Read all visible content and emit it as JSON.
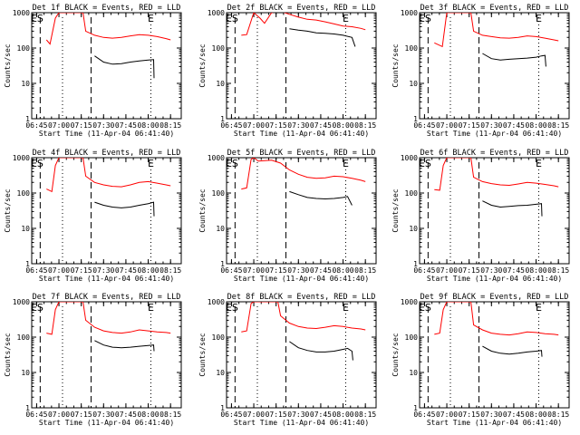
{
  "chart_data": [
    {
      "type": "line",
      "title": "Det 1f BLACK = Events, RED = LLD",
      "black": [
        [
          6.86,
          null
        ],
        [
          6.9,
          null
        ],
        [
          7.4,
          60
        ],
        [
          7.5,
          40
        ],
        [
          7.6,
          35
        ],
        [
          7.7,
          36
        ],
        [
          7.8,
          40
        ],
        [
          7.9,
          43
        ],
        [
          8.0,
          46
        ],
        [
          8.06,
          47
        ],
        [
          8.065,
          14
        ]
      ],
      "red": [
        [
          6.86,
          170
        ],
        [
          6.9,
          130
        ],
        [
          6.96,
          700
        ],
        [
          7.0,
          1000
        ],
        [
          7.27,
          1000
        ],
        [
          7.3,
          300
        ],
        [
          7.4,
          230
        ],
        [
          7.5,
          200
        ],
        [
          7.6,
          190
        ],
        [
          7.7,
          200
        ],
        [
          7.8,
          220
        ],
        [
          7.9,
          240
        ],
        [
          8.0,
          230
        ],
        [
          8.1,
          210
        ],
        [
          8.2,
          185
        ],
        [
          8.25,
          170
        ]
      ]
    },
    {
      "type": "line",
      "title": "Det 2f BLACK = Events, RED = LLD",
      "black": [
        [
          7.4,
          350
        ],
        [
          7.5,
          320
        ],
        [
          7.6,
          300
        ],
        [
          7.7,
          270
        ],
        [
          7.8,
          260
        ],
        [
          7.9,
          250
        ],
        [
          8.0,
          230
        ],
        [
          8.1,
          200
        ],
        [
          8.135,
          110
        ]
      ],
      "red": [
        [
          6.86,
          230
        ],
        [
          6.92,
          240
        ],
        [
          7.0,
          1000
        ],
        [
          7.07,
          700
        ],
        [
          7.12,
          500
        ],
        [
          7.2,
          1000
        ],
        [
          7.3,
          1100
        ],
        [
          7.4,
          900
        ],
        [
          7.5,
          750
        ],
        [
          7.6,
          650
        ],
        [
          7.7,
          620
        ],
        [
          7.8,
          550
        ],
        [
          7.9,
          480
        ],
        [
          8.0,
          420
        ],
        [
          8.1,
          400
        ],
        [
          8.2,
          360
        ],
        [
          8.25,
          330
        ]
      ]
    },
    {
      "type": "line",
      "title": "Det 3f BLACK = Events, RED = LLD",
      "black": [
        [
          7.4,
          70
        ],
        [
          7.5,
          50
        ],
        [
          7.6,
          46
        ],
        [
          7.7,
          48
        ],
        [
          7.8,
          50
        ],
        [
          7.9,
          52
        ],
        [
          8.0,
          55
        ],
        [
          8.06,
          60
        ],
        [
          8.1,
          62
        ],
        [
          8.11,
          30
        ]
      ],
      "red": [
        [
          6.86,
          140
        ],
        [
          6.95,
          110
        ],
        [
          7.0,
          1000
        ],
        [
          7.27,
          1000
        ],
        [
          7.3,
          300
        ],
        [
          7.4,
          230
        ],
        [
          7.5,
          210
        ],
        [
          7.6,
          195
        ],
        [
          7.7,
          190
        ],
        [
          7.8,
          200
        ],
        [
          7.9,
          220
        ],
        [
          8.0,
          210
        ],
        [
          8.1,
          190
        ],
        [
          8.2,
          170
        ],
        [
          8.25,
          160
        ]
      ]
    },
    {
      "type": "line",
      "title": "Det 4f BLACK = Events, RED = LLD",
      "black": [
        [
          7.4,
          55
        ],
        [
          7.5,
          45
        ],
        [
          7.6,
          40
        ],
        [
          7.7,
          38
        ],
        [
          7.8,
          40
        ],
        [
          7.9,
          45
        ],
        [
          8.0,
          50
        ],
        [
          8.06,
          55
        ],
        [
          8.065,
          22
        ]
      ],
      "red": [
        [
          6.86,
          130
        ],
        [
          6.92,
          110
        ],
        [
          6.96,
          600
        ],
        [
          7.0,
          1000
        ],
        [
          7.27,
          1000
        ],
        [
          7.3,
          300
        ],
        [
          7.4,
          200
        ],
        [
          7.5,
          170
        ],
        [
          7.6,
          155
        ],
        [
          7.7,
          150
        ],
        [
          7.8,
          170
        ],
        [
          7.9,
          200
        ],
        [
          8.0,
          210
        ],
        [
          8.1,
          190
        ],
        [
          8.2,
          170
        ],
        [
          8.25,
          160
        ]
      ]
    },
    {
      "type": "line",
      "title": "Det 5f BLACK = Events, RED = LLD",
      "black": [
        [
          7.4,
          110
        ],
        [
          7.5,
          90
        ],
        [
          7.6,
          75
        ],
        [
          7.7,
          70
        ],
        [
          7.8,
          68
        ],
        [
          7.9,
          70
        ],
        [
          8.0,
          75
        ],
        [
          8.05,
          80
        ],
        [
          8.1,
          45
        ]
      ],
      "red": [
        [
          6.86,
          130
        ],
        [
          6.92,
          140
        ],
        [
          6.97,
          900
        ],
        [
          7.0,
          1000
        ],
        [
          7.05,
          800
        ],
        [
          7.2,
          850
        ],
        [
          7.3,
          700
        ],
        [
          7.4,
          450
        ],
        [
          7.5,
          340
        ],
        [
          7.6,
          280
        ],
        [
          7.7,
          260
        ],
        [
          7.8,
          270
        ],
        [
          7.9,
          300
        ],
        [
          8.0,
          290
        ],
        [
          8.1,
          260
        ],
        [
          8.2,
          230
        ],
        [
          8.25,
          210
        ]
      ]
    },
    {
      "type": "line",
      "title": "Det 6f BLACK = Events, RED = LLD",
      "black": [
        [
          7.4,
          60
        ],
        [
          7.5,
          45
        ],
        [
          7.6,
          40
        ],
        [
          7.7,
          42
        ],
        [
          7.8,
          44
        ],
        [
          7.9,
          45
        ],
        [
          8.0,
          48
        ],
        [
          8.06,
          50
        ],
        [
          8.065,
          22
        ]
      ],
      "red": [
        [
          6.86,
          125
        ],
        [
          6.92,
          120
        ],
        [
          6.96,
          600
        ],
        [
          7.0,
          1000
        ],
        [
          7.27,
          1000
        ],
        [
          7.3,
          280
        ],
        [
          7.4,
          210
        ],
        [
          7.5,
          185
        ],
        [
          7.6,
          170
        ],
        [
          7.7,
          165
        ],
        [
          7.8,
          180
        ],
        [
          7.9,
          200
        ],
        [
          8.0,
          190
        ],
        [
          8.1,
          175
        ],
        [
          8.2,
          160
        ],
        [
          8.25,
          150
        ]
      ]
    },
    {
      "type": "line",
      "title": "Det 7f BLACK = Events, RED = LLD",
      "black": [
        [
          7.4,
          80
        ],
        [
          7.5,
          60
        ],
        [
          7.6,
          52
        ],
        [
          7.7,
          50
        ],
        [
          7.8,
          52
        ],
        [
          7.9,
          55
        ],
        [
          8.0,
          58
        ],
        [
          8.06,
          60
        ],
        [
          8.065,
          40
        ]
      ],
      "red": [
        [
          6.86,
          130
        ],
        [
          6.92,
          120
        ],
        [
          6.96,
          600
        ],
        [
          7.0,
          1000
        ],
        [
          7.27,
          1000
        ],
        [
          7.3,
          300
        ],
        [
          7.4,
          190
        ],
        [
          7.5,
          150
        ],
        [
          7.6,
          135
        ],
        [
          7.7,
          130
        ],
        [
          7.8,
          140
        ],
        [
          7.9,
          160
        ],
        [
          8.0,
          150
        ],
        [
          8.1,
          140
        ],
        [
          8.2,
          135
        ],
        [
          8.25,
          130
        ]
      ]
    },
    {
      "type": "line",
      "title": "Det 8f BLACK = Events, RED = LLD",
      "black": [
        [
          7.4,
          75
        ],
        [
          7.5,
          50
        ],
        [
          7.6,
          42
        ],
        [
          7.7,
          38
        ],
        [
          7.8,
          38
        ],
        [
          7.9,
          40
        ],
        [
          8.0,
          45
        ],
        [
          8.05,
          48
        ],
        [
          8.1,
          40
        ],
        [
          8.11,
          22
        ]
      ],
      "red": [
        [
          6.86,
          140
        ],
        [
          6.92,
          150
        ],
        [
          6.97,
          900
        ],
        [
          7.0,
          1000
        ],
        [
          7.27,
          1000
        ],
        [
          7.3,
          400
        ],
        [
          7.4,
          250
        ],
        [
          7.5,
          200
        ],
        [
          7.6,
          180
        ],
        [
          7.7,
          175
        ],
        [
          7.8,
          190
        ],
        [
          7.9,
          210
        ],
        [
          8.0,
          200
        ],
        [
          8.1,
          180
        ],
        [
          8.2,
          170
        ],
        [
          8.25,
          160
        ]
      ]
    },
    {
      "type": "line",
      "title": "Det 9f BLACK = Events, RED = LLD",
      "black": [
        [
          7.4,
          55
        ],
        [
          7.5,
          40
        ],
        [
          7.6,
          35
        ],
        [
          7.7,
          33
        ],
        [
          7.8,
          35
        ],
        [
          7.9,
          38
        ],
        [
          8.0,
          40
        ],
        [
          8.06,
          42
        ],
        [
          8.065,
          28
        ]
      ],
      "red": [
        [
          6.86,
          120
        ],
        [
          6.92,
          130
        ],
        [
          6.96,
          600
        ],
        [
          7.0,
          1000
        ],
        [
          7.27,
          1000
        ],
        [
          7.3,
          220
        ],
        [
          7.4,
          160
        ],
        [
          7.5,
          130
        ],
        [
          7.6,
          120
        ],
        [
          7.7,
          115
        ],
        [
          7.8,
          125
        ],
        [
          7.9,
          140
        ],
        [
          8.0,
          135
        ],
        [
          8.1,
          125
        ],
        [
          8.2,
          120
        ],
        [
          8.25,
          115
        ]
      ]
    }
  ],
  "shared": {
    "ylabel": "Counts/sec",
    "xlabel": "Start Time (11-Apr-04 06:41:40)",
    "xticks": [
      {
        "v": 6.75,
        "l": "06:45"
      },
      {
        "v": 7.0,
        "l": "07:00"
      },
      {
        "v": 7.25,
        "l": "07:15"
      },
      {
        "v": 7.5,
        "l": "07:30"
      },
      {
        "v": 7.75,
        "l": "07:45"
      },
      {
        "v": 8.0,
        "l": "08:00"
      },
      {
        "v": 8.25,
        "l": "08:15"
      }
    ],
    "yticks": [
      {
        "v": 1,
        "l": "1"
      },
      {
        "v": 10,
        "l": "10"
      },
      {
        "v": 100,
        "l": "100"
      },
      {
        "v": 1000,
        "l": "1000"
      }
    ],
    "xlim": [
      6.695,
      8.37
    ],
    "ylim": [
      1,
      1000
    ],
    "yscale": "log",
    "markers": [
      {
        "label": "E",
        "v": 6.72
      },
      {
        "label": "S",
        "v": 6.79
      },
      {
        "label": "E",
        "v": 8.03
      }
    ],
    "dashed_lines": [
      6.79,
      7.36
    ],
    "dotted_lines": [
      7.04,
      8.03
    ],
    "colors": {
      "black": "#000000",
      "red": "#ff0000"
    }
  }
}
